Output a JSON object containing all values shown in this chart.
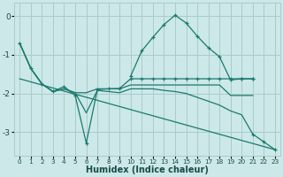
{
  "background_color": "#cce8e8",
  "grid_color": "#aacccc",
  "line_color": "#1a7a6e",
  "xlabel": "Humidex (Indice chaleur)",
  "xlim": [
    -0.5,
    23.5
  ],
  "ylim": [
    -3.6,
    0.35
  ],
  "yticks": [
    0,
    -1,
    -2,
    -3
  ],
  "xticks": [
    0,
    1,
    2,
    3,
    4,
    5,
    6,
    7,
    8,
    9,
    10,
    11,
    12,
    13,
    14,
    15,
    16,
    17,
    18,
    19,
    20,
    21,
    22,
    23
  ],
  "series": [
    {
      "x": [
        10,
        11,
        12,
        13,
        14,
        15,
        16,
        17,
        18,
        19,
        20,
        21
      ],
      "y": [
        -1.55,
        -0.9,
        -0.55,
        -0.22,
        0.02,
        -0.18,
        -0.52,
        -0.82,
        -1.05,
        -1.65,
        -1.62,
        -1.62
      ],
      "marker": true
    },
    {
      "x": [
        0,
        1,
        2,
        3,
        4,
        5,
        6,
        7,
        8,
        9,
        10,
        11,
        12,
        13,
        14,
        15,
        16,
        17,
        18,
        19,
        20,
        21
      ],
      "y": [
        -0.7,
        -1.35,
        -1.75,
        -1.95,
        -1.82,
        -2.05,
        -3.28,
        -1.9,
        -1.88,
        -1.87,
        -1.62,
        -1.62,
        -1.62,
        -1.62,
        -1.62,
        -1.62,
        -1.62,
        -1.62,
        -1.62,
        -1.62,
        -1.62,
        -1.62
      ],
      "marker": true
    },
    {
      "x": [
        0,
        1,
        2,
        3,
        4,
        5,
        6,
        7,
        8,
        9,
        10,
        11,
        12,
        13,
        14,
        15,
        16,
        17,
        18,
        19,
        20,
        21
      ],
      "y": [
        -0.7,
        -1.35,
        -1.75,
        -1.95,
        -1.88,
        -1.98,
        -1.98,
        -1.88,
        -1.88,
        -1.88,
        -1.78,
        -1.78,
        -1.78,
        -1.78,
        -1.78,
        -1.78,
        -1.78,
        -1.78,
        -1.78,
        -2.05,
        -2.05,
        -2.05
      ],
      "marker": false
    },
    {
      "x": [
        0,
        1,
        2,
        3,
        4,
        5,
        6,
        7,
        8,
        9,
        10,
        11,
        12,
        13,
        14,
        15,
        16,
        17,
        18,
        19,
        20,
        21,
        22,
        23
      ],
      "y": [
        -0.7,
        -1.35,
        -1.75,
        -1.95,
        -1.88,
        -1.98,
        -2.5,
        -1.92,
        -1.95,
        -1.98,
        -1.88,
        -1.88,
        -1.88,
        -1.92,
        -1.95,
        -2.0,
        -2.1,
        -2.2,
        -2.3,
        -2.45,
        -2.55,
        -3.05,
        -3.25,
        -3.45
      ],
      "marker": false
    },
    {
      "x": [
        0,
        1,
        2,
        3,
        4,
        5,
        6,
        7,
        8,
        9,
        10,
        11,
        12,
        13,
        14,
        15,
        16,
        17,
        18,
        19,
        20,
        21,
        22,
        23
      ],
      "y": [
        -1.62,
        -1.72,
        -1.82,
        -1.92,
        -2.02,
        -2.12,
        -2.22,
        -2.32,
        -2.42,
        -2.52,
        -2.62,
        -2.72,
        -2.82,
        -2.92,
        -3.02,
        -3.12,
        -3.22,
        -3.32,
        -3.42,
        -3.42,
        -3.42,
        -3.42,
        -3.42,
        -3.42
      ],
      "marker": false
    }
  ]
}
